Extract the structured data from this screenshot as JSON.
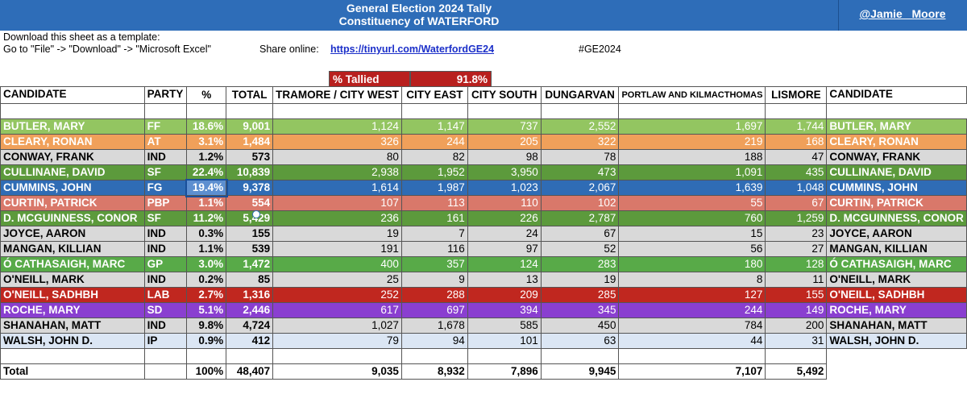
{
  "header": {
    "title_line1": "General Election 2024 Tally",
    "title_line2": "Constituency of WATERFORD",
    "handle": "@Jamie_ Moore"
  },
  "info": {
    "download_line1": "Download this sheet as a template:",
    "download_line2": "Go to \"File\" -> \"Download\" -> \"Microsoft Excel\"",
    "share_label": "Share online:",
    "share_link": "https://tinyurl.com/WaterfordGE24",
    "hashtag": "#GE2024"
  },
  "tallied": {
    "label": "% Tallied",
    "value": "91.8%"
  },
  "columns": {
    "candidate": "CANDIDATE",
    "party": "PARTY",
    "pct": "%",
    "total": "TOTAL",
    "tramore": "TRAMORE / CITY WEST",
    "city_east": "CITY EAST",
    "city_south": "CITY SOUTH",
    "dungarvan": "DUNGARVAN",
    "portlaw": "PORTLAW AND KILMACTHOMAS",
    "lismore": "LISMORE",
    "candidate2": "CANDIDATE"
  },
  "rows": [
    {
      "name": "BUTLER, MARY",
      "party": "FF",
      "pct": "18.6%",
      "total": "9,001",
      "tramore": "1,124",
      "city_east": "1,147",
      "city_south": "737",
      "dungarvan": "2,552",
      "portlaw": "1,697",
      "lismore": "1,744",
      "color": "#93c561",
      "text": "#ffffff"
    },
    {
      "name": "CLEARY, RONAN",
      "party": "AT",
      "pct": "3.1%",
      "total": "1,484",
      "tramore": "326",
      "city_east": "244",
      "city_south": "205",
      "dungarvan": "322",
      "portlaw": "219",
      "lismore": "168",
      "color": "#f0a05a",
      "text": "#ffffff"
    },
    {
      "name": "CONWAY, FRANK",
      "party": "IND",
      "pct": "1.2%",
      "total": "573",
      "tramore": "80",
      "city_east": "82",
      "city_south": "98",
      "dungarvan": "78",
      "portlaw": "188",
      "lismore": "47",
      "color": "#d9d9d9",
      "text": "#000000"
    },
    {
      "name": "CULLINANE, DAVID",
      "party": "SF",
      "pct": "22.4%",
      "total": "10,839",
      "tramore": "2,938",
      "city_east": "1,952",
      "city_south": "3,950",
      "dungarvan": "473",
      "portlaw": "1,091",
      "lismore": "435",
      "color": "#5c9a3c",
      "text": "#ffffff"
    },
    {
      "name": "CUMMINS, JOHN",
      "party": "FG",
      "pct": "19.4%",
      "total": "9,378",
      "tramore": "1,614",
      "city_east": "1,987",
      "city_south": "1,023",
      "dungarvan": "2,067",
      "portlaw": "1,639",
      "lismore": "1,048",
      "color": "#2f6cb5",
      "text": "#ffffff"
    },
    {
      "name": "CURTIN, PATRICK",
      "party": "PBP",
      "pct": "1.1%",
      "total": "554",
      "tramore": "107",
      "city_east": "113",
      "city_south": "110",
      "dungarvan": "102",
      "portlaw": "55",
      "lismore": "67",
      "color": "#d9786a",
      "text": "#ffffff"
    },
    {
      "name": "D. MCGUINNESS, CONOR",
      "party": "SF",
      "pct": "11.2%",
      "total": "5,429",
      "tramore": "236",
      "city_east": "161",
      "city_south": "226",
      "dungarvan": "2,787",
      "portlaw": "760",
      "lismore": "1,259",
      "color": "#5c9a3c",
      "text": "#ffffff"
    },
    {
      "name": "JOYCE, AARON",
      "party": "IND",
      "pct": "0.3%",
      "total": "155",
      "tramore": "19",
      "city_east": "7",
      "city_south": "24",
      "dungarvan": "67",
      "portlaw": "15",
      "lismore": "23",
      "color": "#d9d9d9",
      "text": "#000000"
    },
    {
      "name": "MANGAN, KILLIAN",
      "party": "IND",
      "pct": "1.1%",
      "total": "539",
      "tramore": "191",
      "city_east": "116",
      "city_south": "97",
      "dungarvan": "52",
      "portlaw": "56",
      "lismore": "27",
      "color": "#d9d9d9",
      "text": "#000000"
    },
    {
      "name": "Ó CATHASAIGH, MARC",
      "party": "GP",
      "pct": "3.0%",
      "total": "1,472",
      "tramore": "400",
      "city_east": "357",
      "city_south": "124",
      "dungarvan": "283",
      "portlaw": "180",
      "lismore": "128",
      "color": "#58aa48",
      "text": "#ffffff"
    },
    {
      "name": "O'NEILL, MARK",
      "party": "IND",
      "pct": "0.2%",
      "total": "85",
      "tramore": "25",
      "city_east": "9",
      "city_south": "13",
      "dungarvan": "19",
      "portlaw": "8",
      "lismore": "11",
      "color": "#d9d9d9",
      "text": "#000000"
    },
    {
      "name": "O'NEILL, SADHBH",
      "party": "LAB",
      "pct": "2.7%",
      "total": "1,316",
      "tramore": "252",
      "city_east": "288",
      "city_south": "209",
      "dungarvan": "285",
      "portlaw": "127",
      "lismore": "155",
      "color": "#c0271f",
      "text": "#ffffff"
    },
    {
      "name": "ROCHE, MARY",
      "party": "SD",
      "pct": "5.1%",
      "total": "2,446",
      "tramore": "617",
      "city_east": "697",
      "city_south": "394",
      "dungarvan": "345",
      "portlaw": "244",
      "lismore": "149",
      "color": "#8a3fd0",
      "text": "#ffffff"
    },
    {
      "name": "SHANAHAN, MATT",
      "party": "IND",
      "pct": "9.8%",
      "total": "4,724",
      "tramore": "1,027",
      "city_east": "1,678",
      "city_south": "585",
      "dungarvan": "450",
      "portlaw": "784",
      "lismore": "200",
      "color": "#d9d9d9",
      "text": "#000000"
    },
    {
      "name": "WALSH, JOHN D.",
      "party": "IP",
      "pct": "0.9%",
      "total": "412",
      "tramore": "79",
      "city_east": "94",
      "city_south": "101",
      "dungarvan": "63",
      "portlaw": "44",
      "lismore": "31",
      "color": "#dbe6f4",
      "text": "#000000"
    }
  ],
  "totals": {
    "label": "Total",
    "pct": "100%",
    "total": "48,407",
    "tramore": "9,035",
    "city_east": "8,932",
    "city_south": "7,896",
    "dungarvan": "9,945",
    "portlaw": "7,107",
    "lismore": "5,492"
  }
}
